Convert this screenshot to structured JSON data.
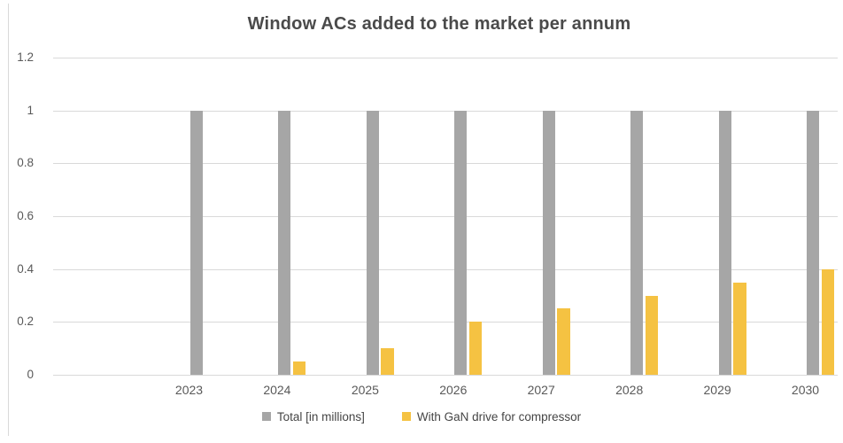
{
  "chart_data": {
    "type": "bar",
    "title": "Window ACs added to the market per annum",
    "categories": [
      "2023",
      "2024",
      "2025",
      "2026",
      "2027",
      "2028",
      "2029",
      "2030"
    ],
    "series": [
      {
        "name": "Total [in millions]",
        "color": "#A6A6A6",
        "values": [
          1,
          1,
          1,
          1,
          1,
          1,
          1,
          1
        ]
      },
      {
        "name": "With GaN drive for compressor",
        "color": "#F5C242",
        "values": [
          0,
          0.05,
          0.1,
          0.2,
          0.25,
          0.3,
          0.35,
          0.4
        ]
      }
    ],
    "xlabel": "",
    "ylabel": "",
    "ylim": [
      0,
      1.2
    ],
    "yticks": [
      0,
      0.2,
      0.4,
      0.6,
      0.8,
      1,
      1.2
    ],
    "ytick_labels": [
      "0",
      "0.2",
      "0.4",
      "0.6",
      "0.8",
      "1",
      "1.2"
    ],
    "grid": "horizontal",
    "legend_position": "bottom",
    "colors": {
      "gridline": "#D9D9D9",
      "axis_text": "#595959",
      "title_text": "#4A4A4A",
      "legend_text": "#454545",
      "chart_border": "#D9D9D9",
      "background": "#FFFFFF"
    }
  }
}
